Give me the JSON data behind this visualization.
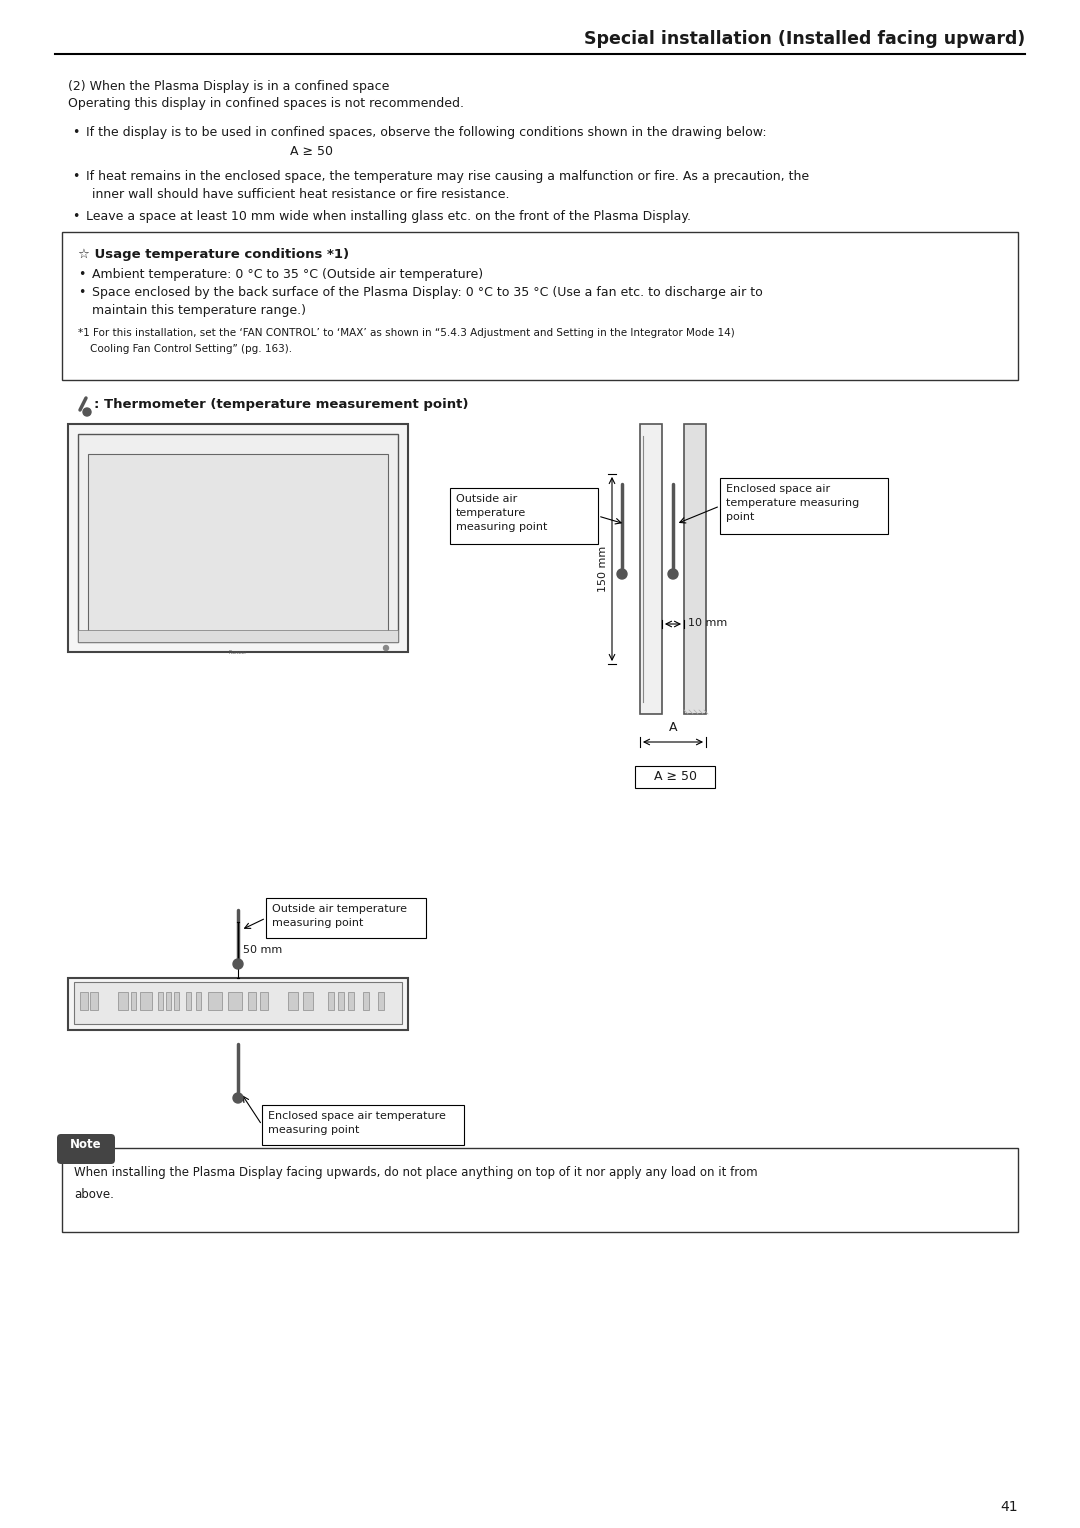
{
  "title": "Special installation (Installed facing upward)",
  "page_number": "41",
  "bg_color": "#ffffff",
  "text_color": "#1a1a1a",
  "body_font_size": 9.0,
  "title_font_size": 12.5,
  "para1_line1": "(2) When the Plasma Display is in a confined space",
  "para1_line2": "Operating this display in confined spaces is not recommended.",
  "bullet1": "If the display is to be used in confined spaces, observe the following conditions shown in the drawing below:",
  "bullet1_indent": "A ≥ 50",
  "bullet2_line1": "If heat remains in the enclosed space, the temperature may rise causing a malfunction or fire. As a precaution, the",
  "bullet2_line2": "inner wall should have sufficient heat resistance or fire resistance.",
  "bullet3": "Leave a space at least 10 mm wide when installing glass etc. on the front of the Plasma Display.",
  "box_title": "☆ Usage temperature conditions *1)",
  "box_bullet1": "Ambient temperature: 0 °C to 35 °C (Outside air temperature)",
  "box_bullet2_line1": "Space enclosed by the back surface of the Plasma Display: 0 °C to 35 °C (Use a fan etc. to discharge air to",
  "box_bullet2_line2": "maintain this temperature range.)",
  "box_note_line1": "*1 For this installation, set the ‘FAN CONTROL’ to ‘MAX’ as shown in “5.4.3 Adjustment and Setting in the Integrator Mode 14)",
  "box_note_line2": "Cooling Fan Control Setting” (pg. 163).",
  "thermo_label": ": Thermometer (temperature measurement point)",
  "label_outside_air_top": "Outside air\ntemperature\nmeasuring point",
  "label_enclosed_space_top": "Enclosed space air\ntemperature measuring\npoint",
  "label_10mm": "10 mm",
  "label_150mm": "150 mm",
  "label_A": "A",
  "label_A_ge_50": "A ≥ 50",
  "label_outside_air_bottom": "Outside air temperature\nmeasuring point",
  "label_50mm": "50 mm",
  "label_enclosed_bottom": "Enclosed space air temperature\nmeasuring point",
  "note_label": "Note",
  "note_text_line1": "When installing the Plasma Display facing upwards, do not place anything on top of it nor apply any load on it from",
  "note_text_line2": "above."
}
